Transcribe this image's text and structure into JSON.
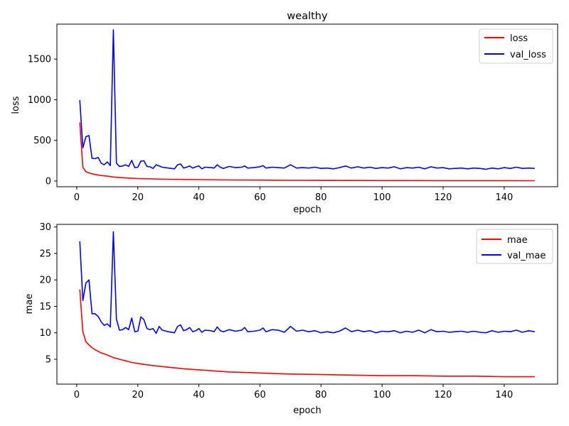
{
  "chart_data": [
    {
      "type": "line",
      "title": "wealthy",
      "xlabel": "epoch",
      "ylabel": "loss",
      "xlim": [
        1,
        150
      ],
      "ylim": [
        -70,
        1930
      ],
      "xticks": [
        0,
        20,
        40,
        60,
        80,
        100,
        120,
        140
      ],
      "yticks": [
        0,
        500,
        1000,
        1500
      ],
      "legend": "top-right",
      "grid": false,
      "series": [
        {
          "name": "loss",
          "color": "#ff0000",
          "x": [
            1,
            2,
            3,
            4,
            5,
            6,
            8,
            10,
            12,
            14,
            16,
            18,
            20,
            25,
            30,
            40,
            50,
            60,
            70,
            80,
            90,
            100,
            110,
            120,
            130,
            140,
            150
          ],
          "values": [
            720,
            170,
            115,
            100,
            90,
            80,
            68,
            60,
            50,
            43,
            38,
            34,
            30,
            26,
            22,
            17,
            13,
            11,
            9,
            8,
            7,
            6,
            6,
            5,
            5,
            5,
            4
          ]
        },
        {
          "name": "val_loss",
          "color": "#0000ff",
          "x": [
            1,
            2,
            3,
            4,
            5,
            6,
            7,
            8,
            9,
            10,
            11,
            12,
            13,
            14,
            15,
            16,
            17,
            18,
            19,
            20,
            21,
            22,
            23,
            24,
            25,
            26,
            27,
            28,
            30,
            32,
            33,
            34,
            35,
            36,
            37,
            38,
            39,
            40,
            41,
            42,
            44,
            45,
            46,
            47,
            48,
            50,
            52,
            54,
            55,
            56,
            58,
            60,
            61,
            62,
            64,
            66,
            68,
            70,
            72,
            74,
            76,
            78,
            80,
            82,
            84,
            86,
            88,
            90,
            92,
            94,
            96,
            98,
            100,
            102,
            104,
            106,
            108,
            110,
            112,
            114,
            116,
            118,
            120,
            122,
            124,
            126,
            128,
            130,
            132,
            134,
            136,
            138,
            140,
            142,
            144,
            146,
            148,
            150
          ],
          "values": [
            995,
            410,
            545,
            560,
            280,
            275,
            290,
            220,
            200,
            235,
            190,
            1860,
            220,
            180,
            185,
            200,
            180,
            255,
            165,
            170,
            245,
            250,
            180,
            175,
            155,
            200,
            185,
            170,
            160,
            150,
            200,
            210,
            160,
            170,
            185,
            160,
            175,
            185,
            150,
            170,
            165,
            160,
            200,
            170,
            155,
            180,
            165,
            170,
            185,
            160,
            165,
            175,
            190,
            160,
            170,
            165,
            160,
            200,
            160,
            165,
            160,
            170,
            155,
            160,
            150,
            165,
            185,
            160,
            175,
            160,
            170,
            155,
            165,
            160,
            175,
            150,
            165,
            160,
            170,
            150,
            175,
            160,
            165,
            150,
            155,
            160,
            150,
            160,
            155,
            145,
            160,
            150,
            165,
            155,
            170,
            155,
            160,
            155
          ]
        }
      ]
    },
    {
      "type": "line",
      "title": "",
      "xlabel": "epoch",
      "ylabel": "mae",
      "xlim": [
        1,
        150
      ],
      "ylim": [
        0.3,
        30.5
      ],
      "xticks": [
        0,
        20,
        40,
        60,
        80,
        100,
        120,
        140
      ],
      "yticks": [
        5,
        10,
        15,
        20,
        25,
        30
      ],
      "legend": "top-right",
      "grid": false,
      "series": [
        {
          "name": "mae",
          "color": "#ff0000",
          "x": [
            1,
            2,
            3,
            4,
            5,
            6,
            7,
            8,
            9,
            10,
            12,
            14,
            16,
            18,
            20,
            25,
            30,
            35,
            40,
            45,
            50,
            55,
            60,
            70,
            80,
            90,
            100,
            110,
            120,
            130,
            140,
            150
          ],
          "values": [
            18.2,
            10.2,
            8.3,
            7.7,
            7.2,
            6.8,
            6.5,
            6.2,
            6.0,
            5.8,
            5.3,
            5.0,
            4.7,
            4.4,
            4.2,
            3.8,
            3.5,
            3.2,
            3.0,
            2.8,
            2.6,
            2.5,
            2.4,
            2.2,
            2.1,
            2.0,
            1.9,
            1.9,
            1.8,
            1.8,
            1.7,
            1.7
          ]
        },
        {
          "name": "val_mae",
          "color": "#0000ff",
          "x": [
            1,
            2,
            3,
            4,
            5,
            6,
            7,
            8,
            9,
            10,
            11,
            12,
            13,
            14,
            15,
            16,
            17,
            18,
            19,
            20,
            21,
            22,
            23,
            24,
            25,
            26,
            27,
            28,
            30,
            32,
            33,
            34,
            35,
            36,
            37,
            38,
            39,
            40,
            41,
            42,
            44,
            45,
            46,
            47,
            48,
            50,
            52,
            54,
            55,
            56,
            58,
            60,
            61,
            62,
            64,
            66,
            68,
            70,
            72,
            74,
            76,
            78,
            80,
            82,
            84,
            86,
            88,
            90,
            92,
            94,
            96,
            98,
            100,
            102,
            104,
            106,
            108,
            110,
            112,
            114,
            116,
            118,
            120,
            122,
            124,
            126,
            128,
            130,
            132,
            134,
            136,
            138,
            140,
            142,
            144,
            146,
            148,
            150
          ],
          "values": [
            27.3,
            16.1,
            19.4,
            20.0,
            13.6,
            13.6,
            13.1,
            12.1,
            11.4,
            11.7,
            11.1,
            29.1,
            12.6,
            10.5,
            10.6,
            11.0,
            10.6,
            12.8,
            10.2,
            10.3,
            13.0,
            12.5,
            10.8,
            10.6,
            10.8,
            9.9,
            11.2,
            10.5,
            10.2,
            10.0,
            11.2,
            11.5,
            10.4,
            10.6,
            11.0,
            10.2,
            10.4,
            10.8,
            10.1,
            10.5,
            10.4,
            10.2,
            11.1,
            10.4,
            10.2,
            10.6,
            10.3,
            10.5,
            11.0,
            10.2,
            10.3,
            10.5,
            10.9,
            10.2,
            10.6,
            10.5,
            10.1,
            11.2,
            10.3,
            10.5,
            10.2,
            10.4,
            10.0,
            10.2,
            10.0,
            10.3,
            10.9,
            10.2,
            10.5,
            10.2,
            10.4,
            10.0,
            10.3,
            10.2,
            10.4,
            10.0,
            10.3,
            10.1,
            10.5,
            10.0,
            10.6,
            10.2,
            10.3,
            10.1,
            10.2,
            10.3,
            10.1,
            10.3,
            10.1,
            10.0,
            10.4,
            10.1,
            10.3,
            10.2,
            10.5,
            10.1,
            10.4,
            10.2
          ]
        }
      ]
    }
  ]
}
